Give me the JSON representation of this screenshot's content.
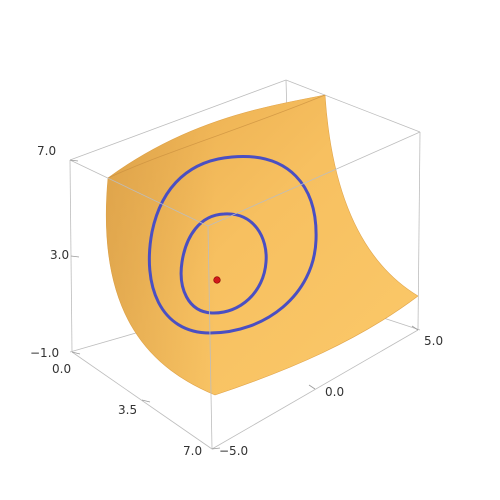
{
  "chart_data": {
    "type": "surface3d",
    "title": "",
    "axes": {
      "x": {
        "range": [
          0.0,
          7.0
        ],
        "ticks": [
          {
            "value": 0.0,
            "label": "0.0"
          },
          {
            "value": 3.5,
            "label": "3.5"
          },
          {
            "value": 7.0,
            "label": "7.0"
          }
        ]
      },
      "y": {
        "range": [
          -5.0,
          5.0
        ],
        "ticks": [
          {
            "value": -5.0,
            "label": "−5.0"
          },
          {
            "value": 0.0,
            "label": "0.0"
          },
          {
            "value": 5.0,
            "label": "5.0"
          }
        ]
      },
      "z": {
        "range": [
          -1.0,
          7.0
        ],
        "ticks": [
          {
            "value": -1.0,
            "label": "−1.0"
          },
          {
            "value": 3.0,
            "label": "3.0"
          },
          {
            "value": 7.0,
            "label": "7.0"
          }
        ]
      }
    },
    "surface": {
      "name": "",
      "color": "#f5b94f",
      "shade_color": "#d99a3a"
    },
    "contours": [
      {
        "name": "",
        "color": "#4a4fc2",
        "level": "outer"
      },
      {
        "name": "",
        "color": "#4a4fc2",
        "level": "inner"
      }
    ],
    "marker": {
      "name": "",
      "color": "#d11a1a"
    },
    "bounding_box": true,
    "grid": false,
    "legend": "none"
  }
}
